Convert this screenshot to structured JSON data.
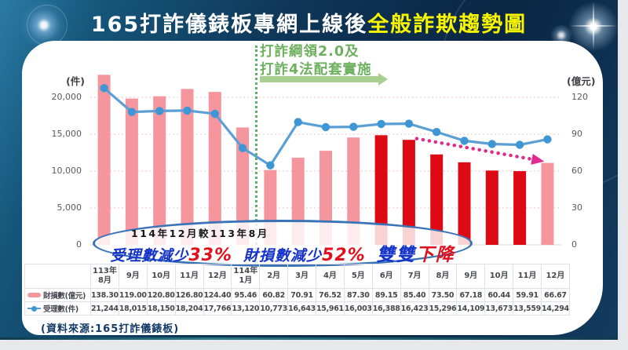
{
  "header": {
    "title_white": "165打詐儀錶板專網上線後",
    "title_yellow": "全般詐欺趨勢圖"
  },
  "chart_data": {
    "type": "bar+line combo",
    "categories": [
      "113年8月",
      "9月",
      "10月",
      "11月",
      "12月",
      "114年1月",
      "2月",
      "3月",
      "4月",
      "5月",
      "6月",
      "7月",
      "8月",
      "9月",
      "10月",
      "11月",
      "12月"
    ],
    "series": [
      {
        "name": "財損數(億元)",
        "chart": "bar",
        "axis": "right",
        "values": [
          138.3,
          119.0,
          120.8,
          126.8,
          124.4,
          95.46,
          60.82,
          70.91,
          76.52,
          87.3,
          89.15,
          85.4,
          73.5,
          67.18,
          60.44,
          59.91,
          66.67
        ],
        "display": [
          "138.30",
          "119.00",
          "120.80",
          "126.80",
          "124.40",
          "95.46",
          "60.82",
          "70.91",
          "76.52",
          "87.30",
          "89.15",
          "85.40",
          "73.50",
          "67.18",
          "60.44",
          "59.91",
          "66.67"
        ],
        "highlight_indices": [
          10,
          11,
          12,
          13,
          14,
          15
        ]
      },
      {
        "name": "受理數(件)",
        "chart": "line",
        "axis": "left",
        "values": [
          21244,
          18015,
          18150,
          18204,
          17766,
          13120,
          10773,
          16643,
          15961,
          16003,
          16388,
          16423,
          15296,
          14109,
          13673,
          13559,
          14294
        ],
        "display": [
          "21,244",
          "18,015",
          "18,150",
          "18,204",
          "17,766",
          "13,120",
          "10,773",
          "16,643",
          "15,961",
          "16,003",
          "16,388",
          "16,423",
          "15,296",
          "14,109",
          "13,673",
          "13,559",
          "14,294"
        ]
      }
    ],
    "left_axis": {
      "caption": "(件)",
      "tick_labels": [
        "0",
        "5,000",
        "10,000",
        "15,000",
        "20,000"
      ],
      "units_per_grid": 5000
    },
    "right_axis": {
      "caption": "(億元)",
      "tick_labels": [
        "0",
        "30",
        "60",
        "90",
        "120"
      ],
      "units_per_grid": 30
    },
    "grid": "dotted horizontal pink",
    "legend_position": "table-left"
  },
  "annotations": {
    "green_event": {
      "line1": "打詐綱領2.0及",
      "line2": "打詐4法配套實施",
      "marker": "green dotted vertical line after 114年1月 with right arrow"
    },
    "trend_arrow": "magenta dashed declining arrow from 7月 to 12月",
    "oval": {
      "line1": "114年12月較113年8月",
      "seg1": "受理數減少",
      "pct1": "33%",
      "seg2": "財損數減少",
      "pct2": "52%",
      "seg3": "雙雙",
      "seg4": "下降"
    }
  },
  "table": {
    "header_labels": [
      "113年\n8月",
      "9月",
      "10月",
      "11月",
      "12月",
      "114年\n1月",
      "2月",
      "3月",
      "4月",
      "5月",
      "6月",
      "7月",
      "8月",
      "9月",
      "10月",
      "11月",
      "12月"
    ],
    "rows": [
      {
        "label": "財損數(億元)",
        "values": [
          "138.30",
          "119.00",
          "120.80",
          "126.80",
          "124.40",
          "95.46",
          "60.82",
          "70.91",
          "76.52",
          "87.30",
          "89.15",
          "85.40",
          "73.50",
          "67.18",
          "60.44",
          "59.91",
          "66.67"
        ]
      },
      {
        "label": "受理數(件)",
        "values": [
          "21,244",
          "18,015",
          "18,150",
          "18,204",
          "17,766",
          "13,120",
          "10,773",
          "16,643",
          "15,961",
          "16,003",
          "16,388",
          "16,423",
          "15,296",
          "14,109",
          "13,673",
          "13,559",
          "14,294"
        ]
      }
    ]
  },
  "source": "(資料來源:165打詐儀錶板)",
  "colors": {
    "bar_pink": "#F5969E",
    "bar_red": "#DD0A14",
    "line_blue": "#5B9FD4",
    "marker_blue": "#3E96D4",
    "grid_pink": "#EFC3C8",
    "baseline": "#D7D7DC",
    "green_text": "#6DB05E",
    "green_arrow": "#A8CF90",
    "green_line": "#4FA95C",
    "magenta": "#DF2B8D",
    "oval_border": "#3B74B6",
    "title_yellow": "#F8F500",
    "banner_navy": "#0C2A46",
    "oval_text_blue": "#1533C8",
    "oval_text_red": "#E0111E"
  }
}
